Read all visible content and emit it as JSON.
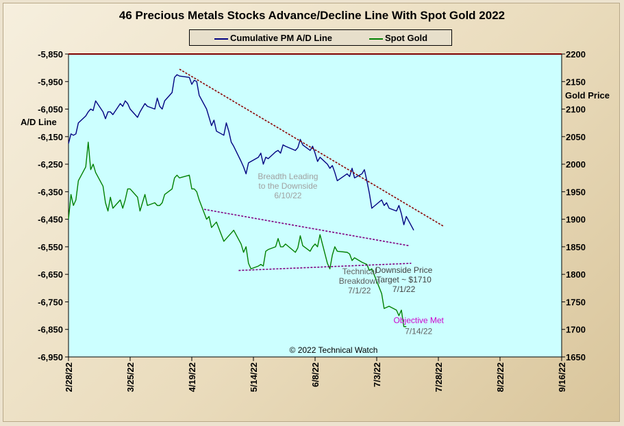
{
  "chart_data": {
    "type": "line",
    "title": "46 Precious Metals Stocks Advance/Decline Line With Spot Gold 2022",
    "ylabel_left": "A/D Line",
    "ylabel_right": "Gold Price",
    "ylim_left": [
      -6950,
      -5850
    ],
    "ylim_right": [
      1650,
      2200
    ],
    "yticks_left": [
      "-5,850",
      "-5,950",
      "-6,050",
      "-6,150",
      "-6,250",
      "-6,350",
      "-6,450",
      "-6,550",
      "-6,650",
      "-6,750",
      "-6,850",
      "-6,950"
    ],
    "yticks_right": [
      "2200",
      "2150",
      "2100",
      "2050",
      "2000",
      "1950",
      "1900",
      "1850",
      "1800",
      "1750",
      "1700",
      "1650"
    ],
    "xticks": [
      "2/28/22",
      "3/25/22",
      "4/19/22",
      "5/14/22",
      "6/8/22",
      "7/3/22",
      "7/28/22",
      "8/22/22",
      "9/16/22"
    ],
    "x_range": [
      "2022-02-28",
      "2022-09-16"
    ],
    "credit": "© 2022 Technical Watch",
    "series": [
      {
        "name": "Cumulative PM A/D Line",
        "color": "#000080",
        "axis": "left",
        "points": [
          [
            "2022-02-28",
            -6175
          ],
          [
            "2022-03-01",
            -6140
          ],
          [
            "2022-03-02",
            -6145
          ],
          [
            "2022-03-03",
            -6140
          ],
          [
            "2022-03-04",
            -6100
          ],
          [
            "2022-03-07",
            -6075
          ],
          [
            "2022-03-08",
            -6060
          ],
          [
            "2022-03-09",
            -6050
          ],
          [
            "2022-03-10",
            -6055
          ],
          [
            "2022-03-11",
            -6020
          ],
          [
            "2022-03-14",
            -6060
          ],
          [
            "2022-03-15",
            -6085
          ],
          [
            "2022-03-16",
            -6060
          ],
          [
            "2022-03-17",
            -6060
          ],
          [
            "2022-03-18",
            -6070
          ],
          [
            "2022-03-21",
            -6030
          ],
          [
            "2022-03-22",
            -6040
          ],
          [
            "2022-03-23",
            -6020
          ],
          [
            "2022-03-24",
            -6030
          ],
          [
            "2022-03-25",
            -6050
          ],
          [
            "2022-03-28",
            -6080
          ],
          [
            "2022-03-29",
            -6060
          ],
          [
            "2022-03-30",
            -6045
          ],
          [
            "2022-03-31",
            -6030
          ],
          [
            "2022-04-01",
            -6040
          ],
          [
            "2022-04-04",
            -6050
          ],
          [
            "2022-04-05",
            -6010
          ],
          [
            "2022-04-06",
            -6040
          ],
          [
            "2022-04-07",
            -6050
          ],
          [
            "2022-04-08",
            -6020
          ],
          [
            "2022-04-11",
            -5990
          ],
          [
            "2022-04-12",
            -5935
          ],
          [
            "2022-04-13",
            -5925
          ],
          [
            "2022-04-14",
            -5930
          ],
          [
            "2022-04-18",
            -5935
          ],
          [
            "2022-04-19",
            -5960
          ],
          [
            "2022-04-20",
            -5945
          ],
          [
            "2022-04-21",
            -5950
          ],
          [
            "2022-04-22",
            -6000
          ],
          [
            "2022-04-25",
            -6050
          ],
          [
            "2022-04-26",
            -6080
          ],
          [
            "2022-04-27",
            -6110
          ],
          [
            "2022-04-28",
            -6090
          ],
          [
            "2022-04-29",
            -6130
          ],
          [
            "2022-05-02",
            -6145
          ],
          [
            "2022-05-03",
            -6100
          ],
          [
            "2022-05-04",
            -6130
          ],
          [
            "2022-05-05",
            -6170
          ],
          [
            "2022-05-06",
            -6185
          ],
          [
            "2022-05-09",
            -6240
          ],
          [
            "2022-05-10",
            -6260
          ],
          [
            "2022-05-11",
            -6285
          ],
          [
            "2022-05-12",
            -6245
          ],
          [
            "2022-05-13",
            -6240
          ],
          [
            "2022-05-16",
            -6225
          ],
          [
            "2022-05-17",
            -6210
          ],
          [
            "2022-05-18",
            -6250
          ],
          [
            "2022-05-19",
            -6225
          ],
          [
            "2022-05-20",
            -6230
          ],
          [
            "2022-05-23",
            -6205
          ],
          [
            "2022-05-24",
            -6200
          ],
          [
            "2022-05-25",
            -6210
          ],
          [
            "2022-05-26",
            -6180
          ],
          [
            "2022-05-27",
            -6185
          ],
          [
            "2022-05-31",
            -6200
          ],
          [
            "2022-06-01",
            -6190
          ],
          [
            "2022-06-02",
            -6160
          ],
          [
            "2022-06-03",
            -6180
          ],
          [
            "2022-06-06",
            -6200
          ],
          [
            "2022-06-07",
            -6185
          ],
          [
            "2022-06-08",
            -6210
          ],
          [
            "2022-06-09",
            -6240
          ],
          [
            "2022-06-10",
            -6225
          ],
          [
            "2022-06-13",
            -6250
          ],
          [
            "2022-06-14",
            -6265
          ],
          [
            "2022-06-15",
            -6255
          ],
          [
            "2022-06-16",
            -6280
          ],
          [
            "2022-06-17",
            -6310
          ],
          [
            "2022-06-21",
            -6285
          ],
          [
            "2022-06-22",
            -6295
          ],
          [
            "2022-06-23",
            -6265
          ],
          [
            "2022-06-24",
            -6300
          ],
          [
            "2022-06-27",
            -6285
          ],
          [
            "2022-06-28",
            -6270
          ],
          [
            "2022-06-29",
            -6310
          ],
          [
            "2022-06-30",
            -6355
          ],
          [
            "2022-07-01",
            -6410
          ],
          [
            "2022-07-05",
            -6380
          ],
          [
            "2022-07-06",
            -6400
          ],
          [
            "2022-07-07",
            -6390
          ],
          [
            "2022-07-08",
            -6410
          ],
          [
            "2022-07-11",
            -6420
          ],
          [
            "2022-07-12",
            -6400
          ],
          [
            "2022-07-13",
            -6430
          ],
          [
            "2022-07-14",
            -6470
          ],
          [
            "2022-07-15",
            -6440
          ],
          [
            "2022-07-18",
            -6490
          ]
        ]
      },
      {
        "name": "Spot Gold",
        "color": "#008000",
        "axis": "right",
        "points": [
          [
            "2022-02-28",
            1900
          ],
          [
            "2022-03-01",
            1945
          ],
          [
            "2022-03-02",
            1925
          ],
          [
            "2022-03-03",
            1935
          ],
          [
            "2022-03-04",
            1970
          ],
          [
            "2022-03-07",
            1995
          ],
          [
            "2022-03-08",
            2040
          ],
          [
            "2022-03-09",
            1990
          ],
          [
            "2022-03-10",
            2000
          ],
          [
            "2022-03-11",
            1985
          ],
          [
            "2022-03-14",
            1960
          ],
          [
            "2022-03-15",
            1930
          ],
          [
            "2022-03-16",
            1915
          ],
          [
            "2022-03-17",
            1940
          ],
          [
            "2022-03-18",
            1920
          ],
          [
            "2022-03-21",
            1935
          ],
          [
            "2022-03-22",
            1920
          ],
          [
            "2022-03-23",
            1935
          ],
          [
            "2022-03-24",
            1955
          ],
          [
            "2022-03-25",
            1955
          ],
          [
            "2022-03-28",
            1940
          ],
          [
            "2022-03-29",
            1915
          ],
          [
            "2022-03-30",
            1930
          ],
          [
            "2022-03-31",
            1945
          ],
          [
            "2022-04-01",
            1925
          ],
          [
            "2022-04-04",
            1930
          ],
          [
            "2022-04-05",
            1925
          ],
          [
            "2022-04-06",
            1925
          ],
          [
            "2022-04-07",
            1930
          ],
          [
            "2022-04-08",
            1945
          ],
          [
            "2022-04-11",
            1955
          ],
          [
            "2022-04-12",
            1975
          ],
          [
            "2022-04-13",
            1980
          ],
          [
            "2022-04-14",
            1975
          ],
          [
            "2022-04-18",
            1980
          ],
          [
            "2022-04-19",
            1955
          ],
          [
            "2022-04-20",
            1955
          ],
          [
            "2022-04-21",
            1950
          ],
          [
            "2022-04-22",
            1935
          ],
          [
            "2022-04-25",
            1900
          ],
          [
            "2022-04-26",
            1905
          ],
          [
            "2022-04-27",
            1885
          ],
          [
            "2022-04-28",
            1890
          ],
          [
            "2022-04-29",
            1895
          ],
          [
            "2022-05-02",
            1860
          ],
          [
            "2022-05-03",
            1865
          ],
          [
            "2022-05-04",
            1870
          ],
          [
            "2022-05-05",
            1875
          ],
          [
            "2022-05-06",
            1880
          ],
          [
            "2022-05-09",
            1855
          ],
          [
            "2022-05-10",
            1840
          ],
          [
            "2022-05-11",
            1850
          ],
          [
            "2022-05-12",
            1820
          ],
          [
            "2022-05-13",
            1810
          ],
          [
            "2022-05-16",
            1815
          ],
          [
            "2022-05-17",
            1818
          ],
          [
            "2022-05-18",
            1815
          ],
          [
            "2022-05-19",
            1842
          ],
          [
            "2022-05-20",
            1845
          ],
          [
            "2022-05-23",
            1850
          ],
          [
            "2022-05-24",
            1865
          ],
          [
            "2022-05-25",
            1850
          ],
          [
            "2022-05-26",
            1850
          ],
          [
            "2022-05-27",
            1855
          ],
          [
            "2022-05-31",
            1840
          ],
          [
            "2022-06-01",
            1848
          ],
          [
            "2022-06-02",
            1870
          ],
          [
            "2022-06-03",
            1852
          ],
          [
            "2022-06-06",
            1842
          ],
          [
            "2022-06-07",
            1850
          ],
          [
            "2022-06-08",
            1855
          ],
          [
            "2022-06-09",
            1850
          ],
          [
            "2022-06-10",
            1872
          ],
          [
            "2022-06-13",
            1820
          ],
          [
            "2022-06-14",
            1810
          ],
          [
            "2022-06-15",
            1835
          ],
          [
            "2022-06-16",
            1850
          ],
          [
            "2022-06-17",
            1842
          ],
          [
            "2022-06-21",
            1840
          ],
          [
            "2022-06-22",
            1837
          ],
          [
            "2022-06-23",
            1825
          ],
          [
            "2022-06-24",
            1830
          ],
          [
            "2022-06-27",
            1822
          ],
          [
            "2022-06-28",
            1820
          ],
          [
            "2022-06-29",
            1818
          ],
          [
            "2022-06-30",
            1807
          ],
          [
            "2022-07-01",
            1810
          ],
          [
            "2022-07-05",
            1765
          ],
          [
            "2022-07-06",
            1738
          ],
          [
            "2022-07-07",
            1740
          ],
          [
            "2022-07-08",
            1742
          ],
          [
            "2022-07-11",
            1735
          ],
          [
            "2022-07-12",
            1725
          ],
          [
            "2022-07-13",
            1735
          ],
          [
            "2022-07-14",
            1705
          ],
          [
            "2022-07-15",
            1705
          ]
        ]
      }
    ],
    "trendlines": [
      {
        "axis": "left",
        "from": [
          "2022-04-14",
          -5905
        ],
        "to": [
          "2022-07-30",
          -6475
        ],
        "color": "#8b0000"
      },
      {
        "axis": "right",
        "from": [
          "2022-04-24",
          1918
        ],
        "to": [
          "2022-07-16",
          1852
        ],
        "color": "#800080"
      },
      {
        "axis": "right",
        "from": [
          "2022-05-08",
          1807
        ],
        "to": [
          "2022-07-17",
          1820
        ],
        "color": "#800080"
      }
    ],
    "annotations": [
      {
        "lines": [
          "Breadth Leading",
          "to the Downside",
          "6/10/22"
        ],
        "color": "#a0a0a0",
        "anchor": [
          "2022-05-28",
          -6305
        ]
      },
      {
        "lines": [
          "Technical",
          "Breakdown",
          "7/1/22"
        ],
        "color": "#606060",
        "anchor": [
          "2022-06-26",
          -6650
        ]
      },
      {
        "lines": [
          "Downside Price",
          "Target ~ $1710",
          "7/1/22"
        ],
        "color": "#404040",
        "anchor": [
          "2022-07-14",
          -6645
        ]
      },
      {
        "lines": [
          "Objective Met"
        ],
        "color": "#cc00cc",
        "anchor": [
          "2022-07-20",
          -6827
        ]
      },
      {
        "lines": [
          "7/14/22"
        ],
        "color": "#606060",
        "anchor": [
          "2022-07-20",
          -6867
        ]
      }
    ]
  }
}
